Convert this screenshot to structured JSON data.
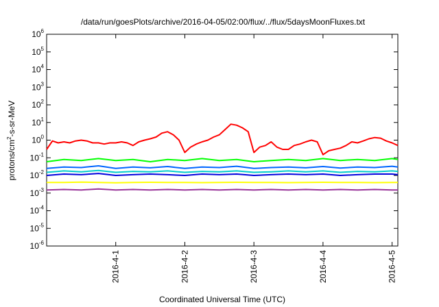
{
  "chart_data": {
    "type": "line",
    "title": "/data/run/goesPlots/archive/2016-04-05/02:00/flux/../flux/5daysMoonFluxes.txt",
    "xlabel": "Coordinated Universal Time (UTC)",
    "ylabel": {
      "base": "protons/cm",
      "sup": "2",
      "rest": "-s-sr-MeV"
    },
    "yscale": "log",
    "ylim": [
      1e-06,
      1000000.0
    ],
    "xlim": [
      "2016-03-31 00:00",
      "2016-04-05 02:00"
    ],
    "x_ticks": [
      "2016-4-1",
      "2016-4-2",
      "2016-4-3",
      "2016-4-4",
      "2016-4-5"
    ],
    "y_ticks": [
      {
        "base": "10",
        "exp": "-6"
      },
      {
        "base": "10",
        "exp": "-5"
      },
      {
        "base": "10",
        "exp": "-4"
      },
      {
        "base": "10",
        "exp": "-3"
      },
      {
        "base": "10",
        "exp": "-2"
      },
      {
        "base": "10",
        "exp": "-1"
      },
      {
        "base": "10",
        "exp": "0"
      },
      {
        "base": "10",
        "exp": "1"
      },
      {
        "base": "10",
        "exp": "2"
      },
      {
        "base": "10",
        "exp": "3"
      },
      {
        "base": "10",
        "exp": "4"
      },
      {
        "base": "10",
        "exp": "5"
      },
      {
        "base": "10",
        "exp": "6"
      }
    ],
    "grid": false,
    "legend": "none",
    "series": [
      {
        "color": "#ff0000",
        "x": [
          "2016-03-31 00:00",
          "2016-03-31 02:00",
          "2016-03-31 04:00",
          "2016-03-31 06:00",
          "2016-03-31 08:00",
          "2016-03-31 10:00",
          "2016-03-31 12:00",
          "2016-03-31 14:00",
          "2016-03-31 16:00",
          "2016-03-31 18:00",
          "2016-03-31 20:00",
          "2016-03-31 22:00",
          "2016-04-01 00:00",
          "2016-04-01 02:00",
          "2016-04-01 04:00",
          "2016-04-01 06:00",
          "2016-04-01 08:00",
          "2016-04-01 10:00",
          "2016-04-01 12:00",
          "2016-04-01 14:00",
          "2016-04-01 16:00",
          "2016-04-01 18:00",
          "2016-04-01 20:00",
          "2016-04-01 22:00",
          "2016-04-02 00:00",
          "2016-04-02 02:00",
          "2016-04-02 04:00",
          "2016-04-02 06:00",
          "2016-04-02 08:00",
          "2016-04-02 10:00",
          "2016-04-02 12:00",
          "2016-04-02 14:00",
          "2016-04-02 16:00",
          "2016-04-02 18:00",
          "2016-04-02 20:00",
          "2016-04-02 22:00",
          "2016-04-03 00:00",
          "2016-04-03 02:00",
          "2016-04-03 04:00",
          "2016-04-03 06:00",
          "2016-04-03 08:00",
          "2016-04-03 10:00",
          "2016-04-03 12:00",
          "2016-04-03 14:00",
          "2016-04-03 16:00",
          "2016-04-03 18:00",
          "2016-04-03 20:00",
          "2016-04-03 22:00",
          "2016-04-04 00:00",
          "2016-04-04 02:00",
          "2016-04-04 04:00",
          "2016-04-04 06:00",
          "2016-04-04 08:00",
          "2016-04-04 10:00",
          "2016-04-04 12:00",
          "2016-04-04 14:00",
          "2016-04-04 16:00",
          "2016-04-04 18:00",
          "2016-04-04 20:00",
          "2016-04-04 22:00",
          "2016-04-05 00:00",
          "2016-04-05 02:00"
        ],
        "y": [
          0.3,
          0.9,
          0.7,
          0.8,
          0.7,
          0.9,
          1.0,
          0.9,
          0.7,
          0.7,
          0.6,
          0.7,
          0.7,
          0.8,
          0.7,
          0.5,
          0.8,
          1.0,
          1.2,
          1.5,
          2.5,
          3.0,
          2.0,
          1.0,
          0.2,
          0.4,
          0.6,
          0.8,
          1.0,
          1.5,
          2.0,
          4.0,
          8.0,
          7.0,
          5.0,
          3.0,
          0.2,
          0.4,
          0.5,
          0.8,
          0.4,
          0.3,
          0.3,
          0.5,
          0.6,
          0.8,
          1.0,
          0.8,
          0.15,
          0.25,
          0.3,
          0.35,
          0.5,
          0.8,
          0.7,
          0.9,
          1.2,
          1.4,
          1.3,
          0.9,
          0.7,
          0.5
        ]
      },
      {
        "color": "#00ff00",
        "x": [
          "2016-03-31 00:00",
          "2016-03-31 06:00",
          "2016-03-31 12:00",
          "2016-03-31 18:00",
          "2016-04-01 00:00",
          "2016-04-01 06:00",
          "2016-04-01 12:00",
          "2016-04-01 18:00",
          "2016-04-02 00:00",
          "2016-04-02 06:00",
          "2016-04-02 12:00",
          "2016-04-02 18:00",
          "2016-04-03 00:00",
          "2016-04-03 06:00",
          "2016-04-03 12:00",
          "2016-04-03 18:00",
          "2016-04-04 00:00",
          "2016-04-04 06:00",
          "2016-04-04 12:00",
          "2016-04-04 18:00",
          "2016-04-05 00:00",
          "2016-04-05 02:00"
        ],
        "y": [
          0.06,
          0.08,
          0.07,
          0.09,
          0.07,
          0.08,
          0.06,
          0.08,
          0.07,
          0.09,
          0.07,
          0.08,
          0.06,
          0.07,
          0.08,
          0.07,
          0.09,
          0.07,
          0.08,
          0.07,
          0.09,
          0.08
        ]
      },
      {
        "color": "#0066ff",
        "x": [
          "2016-03-31 00:00",
          "2016-03-31 06:00",
          "2016-03-31 12:00",
          "2016-03-31 18:00",
          "2016-04-01 00:00",
          "2016-04-01 06:00",
          "2016-04-01 12:00",
          "2016-04-01 18:00",
          "2016-04-02 00:00",
          "2016-04-02 06:00",
          "2016-04-02 12:00",
          "2016-04-02 18:00",
          "2016-04-03 00:00",
          "2016-04-03 06:00",
          "2016-04-03 12:00",
          "2016-04-03 18:00",
          "2016-04-04 00:00",
          "2016-04-04 06:00",
          "2016-04-04 12:00",
          "2016-04-04 18:00",
          "2016-04-05 00:00",
          "2016-04-05 02:00"
        ],
        "y": [
          0.025,
          0.03,
          0.028,
          0.035,
          0.025,
          0.03,
          0.027,
          0.032,
          0.025,
          0.03,
          0.028,
          0.033,
          0.025,
          0.028,
          0.03,
          0.027,
          0.032,
          0.026,
          0.03,
          0.028,
          0.033,
          0.03
        ]
      },
      {
        "color": "#00cccc",
        "x": [
          "2016-03-31 00:00",
          "2016-03-31 06:00",
          "2016-03-31 12:00",
          "2016-03-31 18:00",
          "2016-04-01 00:00",
          "2016-04-01 06:00",
          "2016-04-01 12:00",
          "2016-04-01 18:00",
          "2016-04-02 00:00",
          "2016-04-02 06:00",
          "2016-04-02 12:00",
          "2016-04-02 18:00",
          "2016-04-03 00:00",
          "2016-04-03 06:00",
          "2016-04-03 12:00",
          "2016-04-03 18:00",
          "2016-04-04 00:00",
          "2016-04-04 06:00",
          "2016-04-04 12:00",
          "2016-04-04 18:00",
          "2016-04-05 00:00",
          "2016-04-05 02:00"
        ],
        "y": [
          0.015,
          0.018,
          0.016,
          0.019,
          0.015,
          0.017,
          0.016,
          0.018,
          0.015,
          0.017,
          0.016,
          0.018,
          0.015,
          0.016,
          0.018,
          0.016,
          0.018,
          0.015,
          0.017,
          0.016,
          0.018,
          0.017
        ]
      },
      {
        "color": "#0000dd",
        "x": [
          "2016-03-31 00:00",
          "2016-03-31 06:00",
          "2016-03-31 12:00",
          "2016-03-31 18:00",
          "2016-04-01 00:00",
          "2016-04-01 06:00",
          "2016-04-01 12:00",
          "2016-04-01 18:00",
          "2016-04-02 00:00",
          "2016-04-02 06:00",
          "2016-04-02 12:00",
          "2016-04-02 18:00",
          "2016-04-03 00:00",
          "2016-04-03 06:00",
          "2016-04-03 12:00",
          "2016-04-03 18:00",
          "2016-04-04 00:00",
          "2016-04-04 06:00",
          "2016-04-04 12:00",
          "2016-04-04 18:00",
          "2016-04-05 00:00",
          "2016-04-05 02:00"
        ],
        "y": [
          0.01,
          0.012,
          0.011,
          0.013,
          0.01,
          0.011,
          0.012,
          0.011,
          0.01,
          0.012,
          0.011,
          0.012,
          0.01,
          0.011,
          0.012,
          0.011,
          0.012,
          0.01,
          0.011,
          0.012,
          0.012,
          0.011
        ]
      },
      {
        "color": "#ffff00",
        "x": [
          "2016-03-31 00:00",
          "2016-03-31 06:00",
          "2016-03-31 12:00",
          "2016-03-31 18:00",
          "2016-04-01 00:00",
          "2016-04-01 06:00",
          "2016-04-01 12:00",
          "2016-04-01 18:00",
          "2016-04-02 00:00",
          "2016-04-02 06:00",
          "2016-04-02 12:00",
          "2016-04-02 18:00",
          "2016-04-03 00:00",
          "2016-04-03 06:00",
          "2016-04-03 12:00",
          "2016-04-03 18:00",
          "2016-04-04 00:00",
          "2016-04-04 06:00",
          "2016-04-04 12:00",
          "2016-04-04 18:00",
          "2016-04-05 00:00",
          "2016-04-05 02:00"
        ],
        "y": [
          0.004,
          0.004,
          0.0042,
          0.004,
          0.0038,
          0.004,
          0.0041,
          0.004,
          0.004,
          0.0039,
          0.004,
          0.0041,
          0.004,
          0.004,
          0.0039,
          0.004,
          0.0041,
          0.004,
          0.004,
          0.0039,
          0.004,
          0.004
        ]
      },
      {
        "color": "#993399",
        "x": [
          "2016-03-31 00:00",
          "2016-03-31 06:00",
          "2016-03-31 12:00",
          "2016-03-31 18:00",
          "2016-04-01 00:00",
          "2016-04-01 06:00",
          "2016-04-01 12:00",
          "2016-04-01 18:00",
          "2016-04-02 00:00",
          "2016-04-02 06:00",
          "2016-04-02 12:00",
          "2016-04-02 18:00",
          "2016-04-03 00:00",
          "2016-04-03 06:00",
          "2016-04-03 12:00",
          "2016-04-03 18:00",
          "2016-04-04 00:00",
          "2016-04-04 06:00",
          "2016-04-04 12:00",
          "2016-04-04 18:00",
          "2016-04-05 00:00",
          "2016-04-05 02:00"
        ],
        "y": [
          0.0015,
          0.0016,
          0.0015,
          0.0017,
          0.0015,
          0.0016,
          0.0015,
          0.0016,
          0.0015,
          0.0016,
          0.0015,
          0.0016,
          0.0015,
          0.0016,
          0.0015,
          0.0016,
          0.0015,
          0.0016,
          0.0015,
          0.0016,
          0.0015,
          0.0015
        ]
      }
    ]
  }
}
